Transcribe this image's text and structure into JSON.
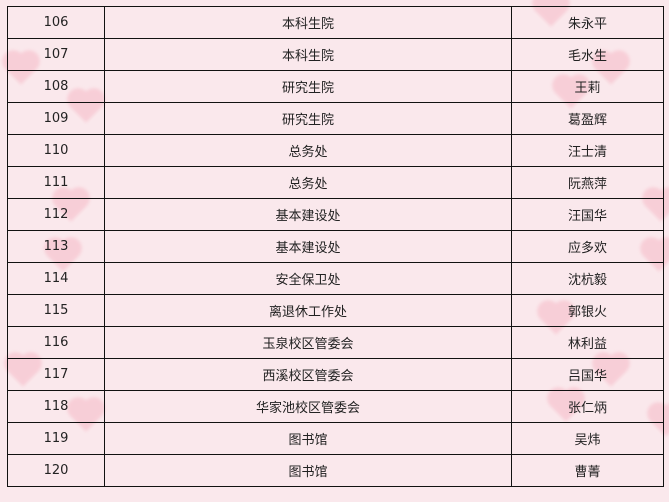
{
  "rows": [
    {
      "num": "106",
      "dept": "本科生院",
      "name": "朱永平"
    },
    {
      "num": "107",
      "dept": "本科生院",
      "name": "毛水生"
    },
    {
      "num": "108",
      "dept": "研究生院",
      "name": "王莉"
    },
    {
      "num": "109",
      "dept": "研究生院",
      "name": "葛盈辉"
    },
    {
      "num": "110",
      "dept": "总务处",
      "name": "汪士清"
    },
    {
      "num": "111",
      "dept": "总务处",
      "name": "阮燕萍"
    },
    {
      "num": "112",
      "dept": "基本建设处",
      "name": "汪国华"
    },
    {
      "num": "113",
      "dept": "基本建设处",
      "name": "应多欢"
    },
    {
      "num": "114",
      "dept": "安全保卫处",
      "name": "沈杭毅"
    },
    {
      "num": "115",
      "dept": "离退休工作处",
      "name": "郭银火"
    },
    {
      "num": "116",
      "dept": "玉泉校区管委会",
      "name": "林利益"
    },
    {
      "num": "117",
      "dept": "西溪校区管委会",
      "name": "吕国华"
    },
    {
      "num": "118",
      "dept": "华家池校区管委会",
      "name": "张仁炳"
    },
    {
      "num": "119",
      "dept": "图书馆",
      "name": "吴炜"
    },
    {
      "num": "120",
      "dept": "图书馆",
      "name": "曹菁"
    }
  ],
  "colors": {
    "background": "#fae8ec",
    "heart": "#f6b9c6",
    "border": "#111111"
  }
}
